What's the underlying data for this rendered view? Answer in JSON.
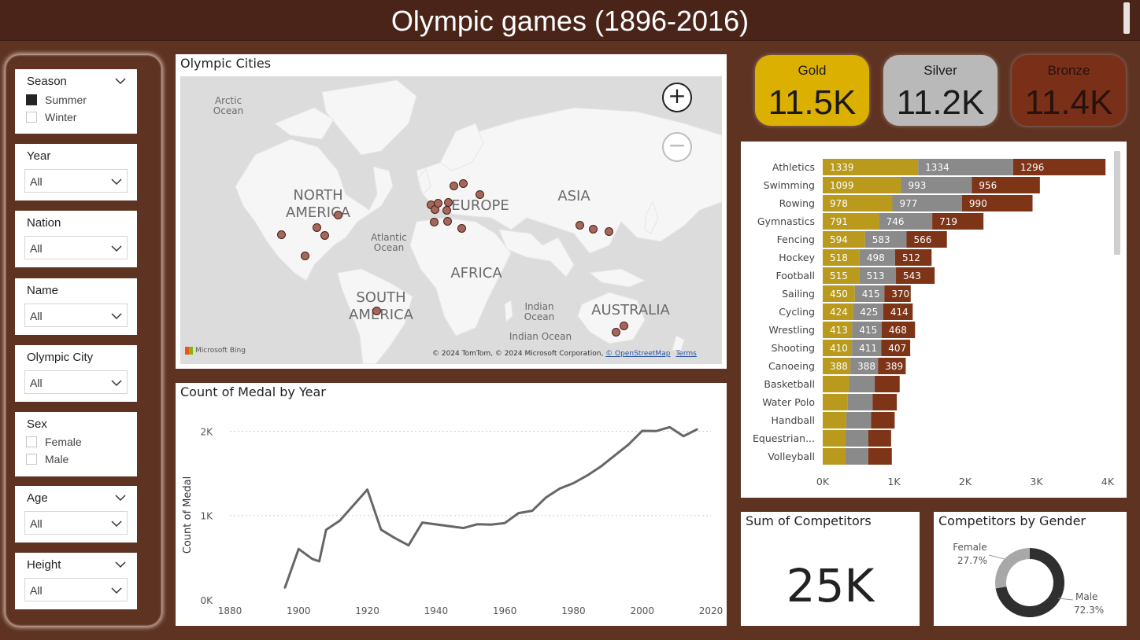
{
  "header": {
    "title": "Olympic games (1896-2016)"
  },
  "filters": {
    "season": {
      "title": "Season",
      "options": [
        {
          "label": "Summer",
          "checked": true
        },
        {
          "label": "Winter",
          "checked": false
        }
      ]
    },
    "year": {
      "title": "Year",
      "value": "All"
    },
    "nation": {
      "title": "Nation",
      "value": "All"
    },
    "name": {
      "title": "Name",
      "value": "All"
    },
    "city": {
      "title": "Olympic City",
      "value": "All"
    },
    "sex": {
      "title": "Sex",
      "options": [
        {
          "label": "Female",
          "checked": false
        },
        {
          "label": "Male",
          "checked": false
        }
      ]
    },
    "age": {
      "title": "Age",
      "value": "All"
    },
    "height": {
      "title": "Height",
      "value": "All"
    }
  },
  "map": {
    "title": "Olympic Cities",
    "labels": {
      "arctic": "Arctic Ocean",
      "north_america_1": "NORTH",
      "north_america_2": "AMERICA",
      "europe": "EUROPE",
      "asia": "ASIA",
      "atlantic": "Atlantic Ocean",
      "africa": "AFRICA",
      "south_america_1": "SOUTH",
      "south_america_2": "AMERICA",
      "indian": "Indian Ocean",
      "indian2": "Indian Ocean",
      "australia": "AUSTRALIA"
    },
    "attribution": "© 2024 TomTom, © 2024 Microsoft Corporation,",
    "osm": "© OpenStreetMap",
    "terms": "Terms",
    "bing": "Microsoft Bing",
    "zoom_in": "+",
    "zoom_out": "−"
  },
  "kpis": {
    "gold": {
      "label": "Gold",
      "value": "11.5K",
      "bg": "#dcb000",
      "fg": "#1a1a1a"
    },
    "silver": {
      "label": "Silver",
      "value": "11.2K",
      "bg": "#b9b9b9",
      "fg": "#1a1a1a"
    },
    "bronze": {
      "label": "Bronze",
      "value": "11.4K",
      "bg": "#7a2f19",
      "fg": "#2a120c"
    }
  },
  "competitors": {
    "title": "Sum of Competitors",
    "value": "25K"
  },
  "gender": {
    "title": "Competitors by Gender",
    "female_label": "Female",
    "female_pct": "27.7%",
    "female_value": 27.7,
    "male_label": "Male",
    "male_pct": "72.3%",
    "male_value": 72.3,
    "colors": {
      "female": "#a8a8a8",
      "male": "#2f2f2f"
    }
  },
  "colors": {
    "gold": "#b99a1c",
    "silver": "#8a8a8a",
    "bronze": "#7e3417",
    "line": "#666666"
  },
  "chart_data": [
    {
      "type": "line",
      "title": "Count of Medal by Year",
      "xlabel": "",
      "ylabel": "Count of Medal",
      "xlim": [
        1880,
        2020
      ],
      "ylim": [
        0,
        2200
      ],
      "xticks": [
        1880,
        1900,
        1920,
        1940,
        1960,
        1980,
        2000,
        2020
      ],
      "yticks": [
        {
          "v": 0,
          "label": "0K"
        },
        {
          "v": 1000,
          "label": "1K"
        },
        {
          "v": 2000,
          "label": "2K"
        }
      ],
      "grid": true,
      "x": [
        1896,
        1900,
        1904,
        1906,
        1908,
        1912,
        1920,
        1924,
        1928,
        1932,
        1936,
        1948,
        1952,
        1956,
        1960,
        1964,
        1968,
        1972,
        1976,
        1980,
        1984,
        1988,
        1992,
        1996,
        2000,
        2004,
        2008,
        2012,
        2016
      ],
      "y": [
        143,
        604,
        486,
        458,
        831,
        941,
        1308,
        832,
        734,
        647,
        917,
        852,
        897,
        893,
        911,
        1029,
        1057,
        1215,
        1320,
        1384,
        1476,
        1582,
        1712,
        1842,
        2004,
        2001,
        2048,
        1941,
        2023
      ]
    },
    {
      "type": "bar",
      "orientation": "horizontal",
      "stacked": true,
      "title": "",
      "categories": [
        "Athletics",
        "Swimming",
        "Rowing",
        "Gymnastics",
        "Fencing",
        "Hockey",
        "Football",
        "Sailing",
        "Cycling",
        "Wrestling",
        "Shooting",
        "Canoeing",
        "Basketball",
        "Water Polo",
        "Handball",
        "Equestrian...",
        "Volleyball"
      ],
      "series": [
        {
          "name": "Gold",
          "values": [
            1339,
            1099,
            978,
            791,
            594,
            518,
            515,
            450,
            424,
            413,
            410,
            388,
            370,
            350,
            330,
            320,
            320
          ]
        },
        {
          "name": "Silver",
          "values": [
            1334,
            993,
            977,
            746,
            583,
            498,
            513,
            415,
            425,
            415,
            411,
            388,
            360,
            350,
            350,
            320,
            320
          ]
        },
        {
          "name": "Bronze",
          "values": [
            1296,
            956,
            990,
            719,
            566,
            512,
            543,
            370,
            414,
            468,
            407,
            389,
            350,
            340,
            330,
            320,
            330
          ]
        }
      ],
      "labeled_rows": 12,
      "xlim": [
        0,
        4000
      ],
      "xticks": [
        {
          "v": 0,
          "label": "0K"
        },
        {
          "v": 1000,
          "label": "1K"
        },
        {
          "v": 2000,
          "label": "2K"
        },
        {
          "v": 3000,
          "label": "3K"
        },
        {
          "v": 4000,
          "label": "4K"
        }
      ]
    }
  ]
}
